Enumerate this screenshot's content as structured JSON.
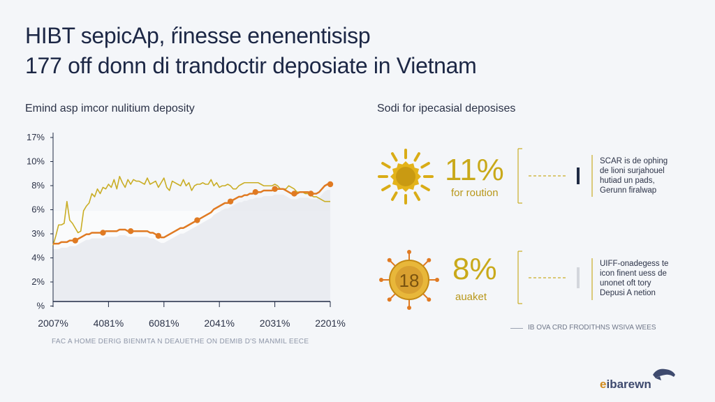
{
  "title_lines": [
    "HIBT sepicAp, ŕinesse enenentisisp",
    "177 off donn di trandoctir deposiate in Vietnam"
  ],
  "left_subtitle": "Emind asp imcor nulitium deposity",
  "right_subtitle": "Sodi for ipecasial deposises",
  "source_note": "FAC A HOME DERIG BIENMTA N DEAUETHE ON DEMIB D'S MANMIL EECE",
  "chart_data": {
    "type": "line",
    "title": "Emind asp imcor nulitium deposity",
    "y_tick_labels": [
      "17%",
      "10%",
      "8%",
      "6%",
      "3%",
      "4%",
      "2%",
      "%"
    ],
    "x_tick_labels": [
      "2007%",
      "4081%",
      "6081%",
      "2041%",
      "2031%",
      "2201%"
    ],
    "x": [
      0,
      1,
      2,
      3,
      4,
      5,
      6,
      7,
      8,
      9,
      10,
      11,
      12,
      13,
      14,
      15,
      16,
      17,
      18,
      19,
      20,
      21,
      22,
      23,
      24,
      25,
      26,
      27,
      28,
      29,
      30,
      31,
      32,
      33,
      34,
      35,
      36,
      37,
      38,
      39,
      40,
      41,
      42,
      43,
      44,
      45,
      46,
      47,
      48,
      49,
      50,
      51,
      52,
      53,
      54,
      55,
      56,
      57,
      58,
      59,
      60,
      61,
      62,
      63,
      64,
      65,
      66,
      67,
      68,
      69,
      70,
      71,
      72,
      73,
      74,
      75,
      76,
      77,
      78,
      79,
      80,
      81,
      82,
      83,
      84,
      85,
      86,
      87,
      88,
      89,
      90,
      91,
      92,
      93,
      94,
      95,
      96,
      97,
      98,
      99,
      100
    ],
    "series": [
      {
        "color": "#c9ad24",
        "values": [
          3.6,
          4.2,
          4.9,
          4.9,
          5.0,
          6.4,
          5.2,
          5.0,
          4.7,
          4.4,
          4.5,
          5.8,
          6.1,
          6.3,
          6.9,
          6.7,
          7.2,
          6.9,
          7.3,
          7.2,
          7.5,
          7.3,
          7.8,
          7.2,
          8.0,
          7.6,
          7.3,
          7.8,
          7.5,
          7.8,
          7.7,
          7.7,
          7.6,
          7.5,
          7.9,
          7.5,
          7.6,
          7.7,
          7.3,
          7.6,
          7.9,
          7.3,
          7.1,
          7.7,
          7.6,
          7.5,
          7.4,
          7.8,
          7.4,
          7.6,
          7.1,
          7.4,
          7.5,
          7.5,
          7.6,
          7.5,
          7.5,
          7.8,
          7.4,
          7.6,
          7.3,
          7.4,
          7.4,
          7.5,
          7.4,
          7.2,
          7.2,
          7.4,
          7.5,
          7.6,
          7.6,
          7.6,
          7.6,
          7.6,
          7.6,
          7.5,
          7.4,
          7.4,
          7.4,
          7.4,
          7.5,
          7.4,
          7.2,
          7.2,
          7.2,
          7.4,
          7.3,
          7.2,
          7.0,
          7.0,
          7.0,
          6.9,
          6.9,
          6.8,
          6.7,
          6.7,
          6.6,
          6.5,
          6.4,
          6.4,
          6.4
        ]
      },
      {
        "color": "#e07a22",
        "values": [
          3.7,
          3.7,
          3.7,
          3.8,
          3.8,
          3.8,
          3.9,
          3.9,
          3.9,
          4.0,
          4.1,
          4.2,
          4.3,
          4.3,
          4.4,
          4.4,
          4.4,
          4.4,
          4.4,
          4.5,
          4.5,
          4.5,
          4.5,
          4.5,
          4.6,
          4.6,
          4.6,
          4.5,
          4.5,
          4.5,
          4.5,
          4.5,
          4.5,
          4.5,
          4.5,
          4.4,
          4.4,
          4.3,
          4.2,
          4.1,
          4.1,
          4.2,
          4.3,
          4.4,
          4.5,
          4.6,
          4.7,
          4.7,
          4.8,
          4.9,
          5.0,
          5.1,
          5.2,
          5.3,
          5.4,
          5.5,
          5.6,
          5.7,
          5.9,
          6.0,
          6.1,
          6.2,
          6.3,
          6.3,
          6.4,
          6.5,
          6.6,
          6.7,
          6.7,
          6.8,
          6.8,
          6.9,
          6.9,
          7.0,
          7.0,
          7.0,
          7.1,
          7.1,
          7.1,
          7.1,
          7.2,
          7.2,
          7.2,
          7.2,
          7.1,
          7.0,
          6.9,
          6.9,
          6.9,
          7.0,
          7.0,
          7.0,
          7.0,
          6.9,
          6.9,
          6.9,
          7.0,
          7.2,
          7.4,
          7.5,
          7.5
        ]
      }
    ]
  },
  "stats": [
    {
      "value": "11%",
      "sub": "for roution",
      "icon": "sun-icon",
      "desc_lines": [
        "SCAR is de ophing",
        "de lioni surjahouel",
        "hutiad un pads,",
        "Gerunn firalwap"
      ]
    },
    {
      "value": "8%",
      "sub": "auaket",
      "icon": "coin-icon",
      "coin_text": "18",
      "desc_lines": [
        "UIFF-onadegess te",
        "icon finent uess de",
        "unonet oft tory",
        "Depusi A netion"
      ]
    }
  ],
  "footnote": "IB OVA CRD FRODITHNS WSIVA WEES",
  "logo": {
    "first": "e",
    "rest": "ibarewn"
  },
  "colors": {
    "gold": "#c9ad24",
    "orange": "#e07a22",
    "text": "#1f2a44"
  }
}
